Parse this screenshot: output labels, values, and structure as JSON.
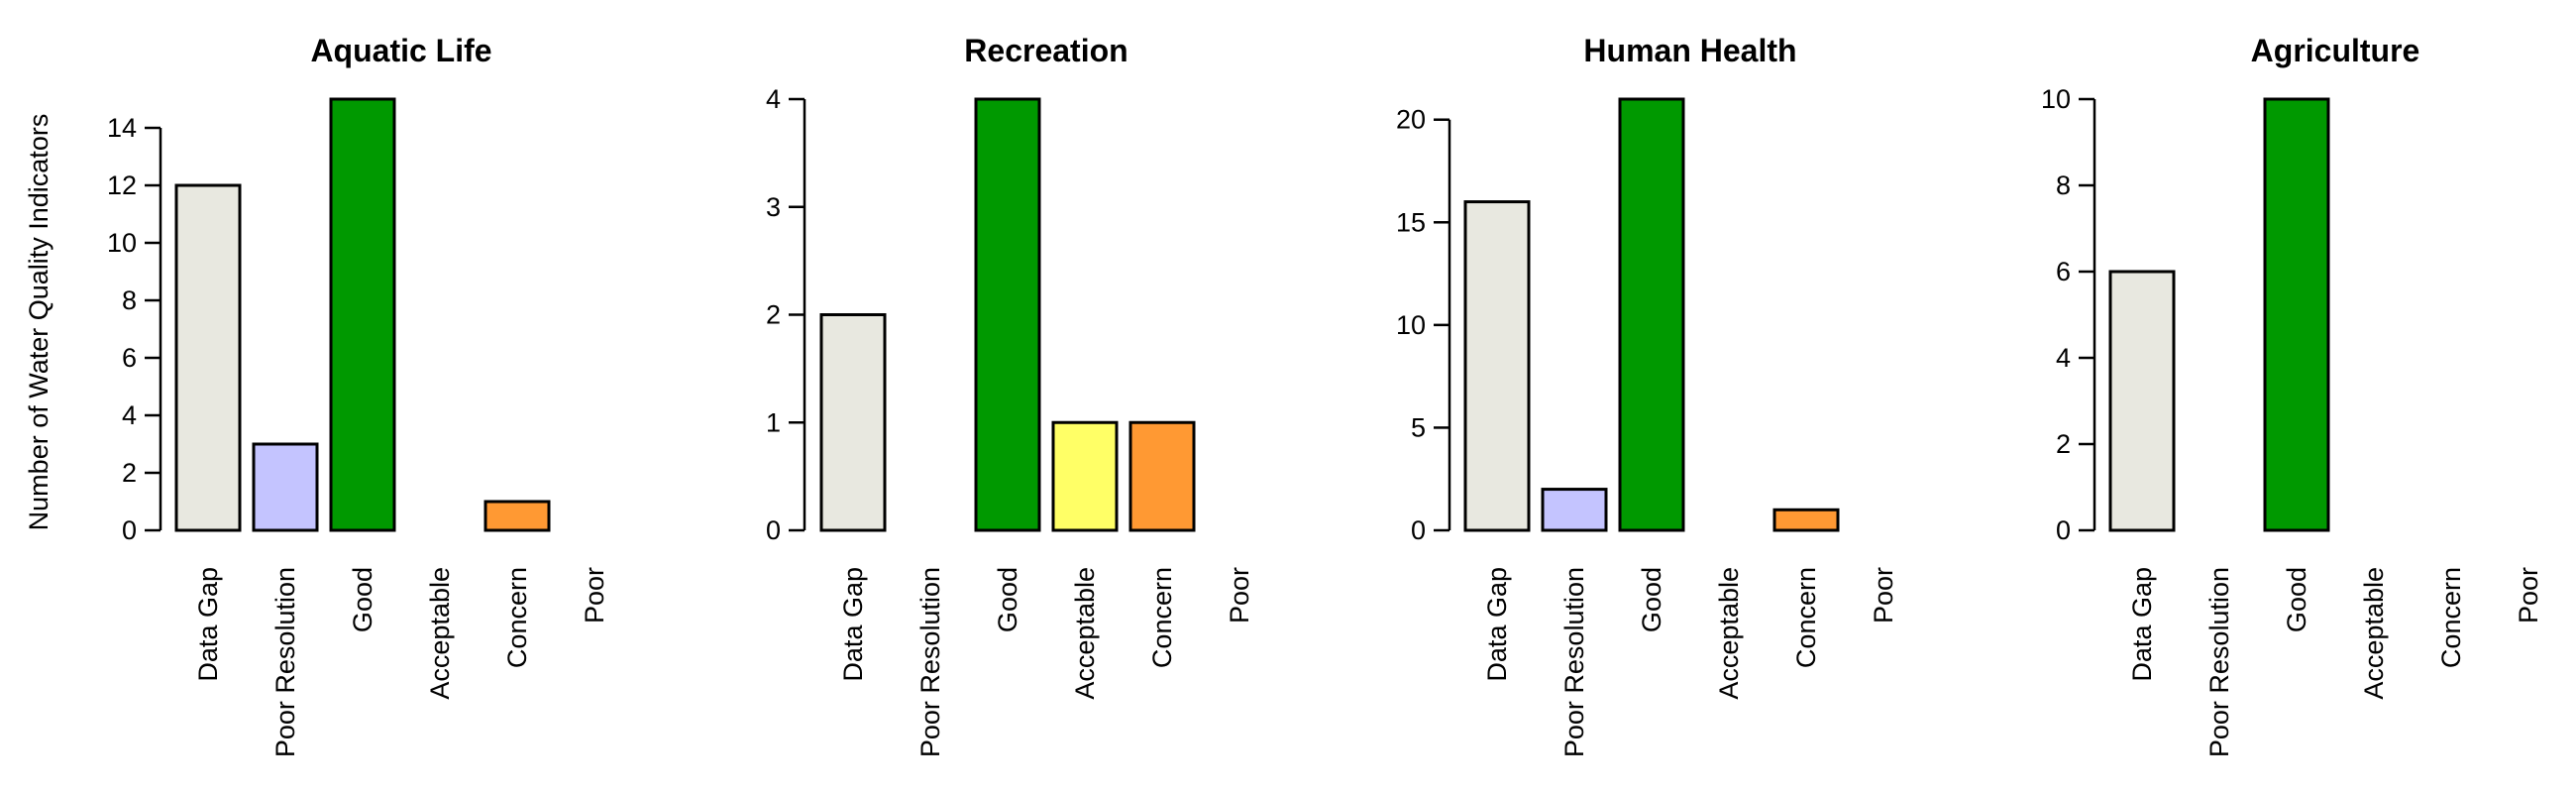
{
  "ylabel": "Number of Water Quality Indicators",
  "colors": {
    "Data Gap": "#e8e8e0",
    "Poor Resolution": "#c4c4ff",
    "Good": "#009900",
    "Acceptable": "#ffff66",
    "Concern": "#ff9933",
    "Poor": "#ff3333",
    "stroke": "#000000"
  },
  "chart_data": [
    {
      "type": "bar",
      "title": "Aquatic Life",
      "categories": [
        "Data Gap",
        "Poor Resolution",
        "Good",
        "Acceptable",
        "Concern",
        "Poor"
      ],
      "values": [
        12,
        3,
        15,
        0,
        1,
        0
      ],
      "yticks": [
        0,
        2,
        4,
        6,
        8,
        10,
        12,
        14
      ],
      "ylim": [
        0,
        15
      ],
      "ylabel": "Number of Water Quality Indicators"
    },
    {
      "type": "bar",
      "title": "Recreation",
      "categories": [
        "Data Gap",
        "Poor Resolution",
        "Good",
        "Acceptable",
        "Concern",
        "Poor"
      ],
      "values": [
        2,
        0,
        4,
        1,
        1,
        0
      ],
      "yticks": [
        0,
        1,
        2,
        3,
        4
      ],
      "ylim": [
        0,
        4
      ],
      "ylabel": ""
    },
    {
      "type": "bar",
      "title": "Human Health",
      "categories": [
        "Data Gap",
        "Poor Resolution",
        "Good",
        "Acceptable",
        "Concern",
        "Poor"
      ],
      "values": [
        16,
        2,
        21,
        0,
        1,
        0
      ],
      "yticks": [
        0,
        5,
        10,
        15,
        20
      ],
      "ylim": [
        0,
        21
      ],
      "ylabel": ""
    },
    {
      "type": "bar",
      "title": "Agriculture",
      "categories": [
        "Data Gap",
        "Poor Resolution",
        "Good",
        "Acceptable",
        "Concern",
        "Poor"
      ],
      "values": [
        6,
        0,
        10,
        0,
        0,
        0
      ],
      "yticks": [
        0,
        2,
        4,
        6,
        8,
        10
      ],
      "ylim": [
        0,
        10
      ],
      "ylabel": ""
    }
  ]
}
